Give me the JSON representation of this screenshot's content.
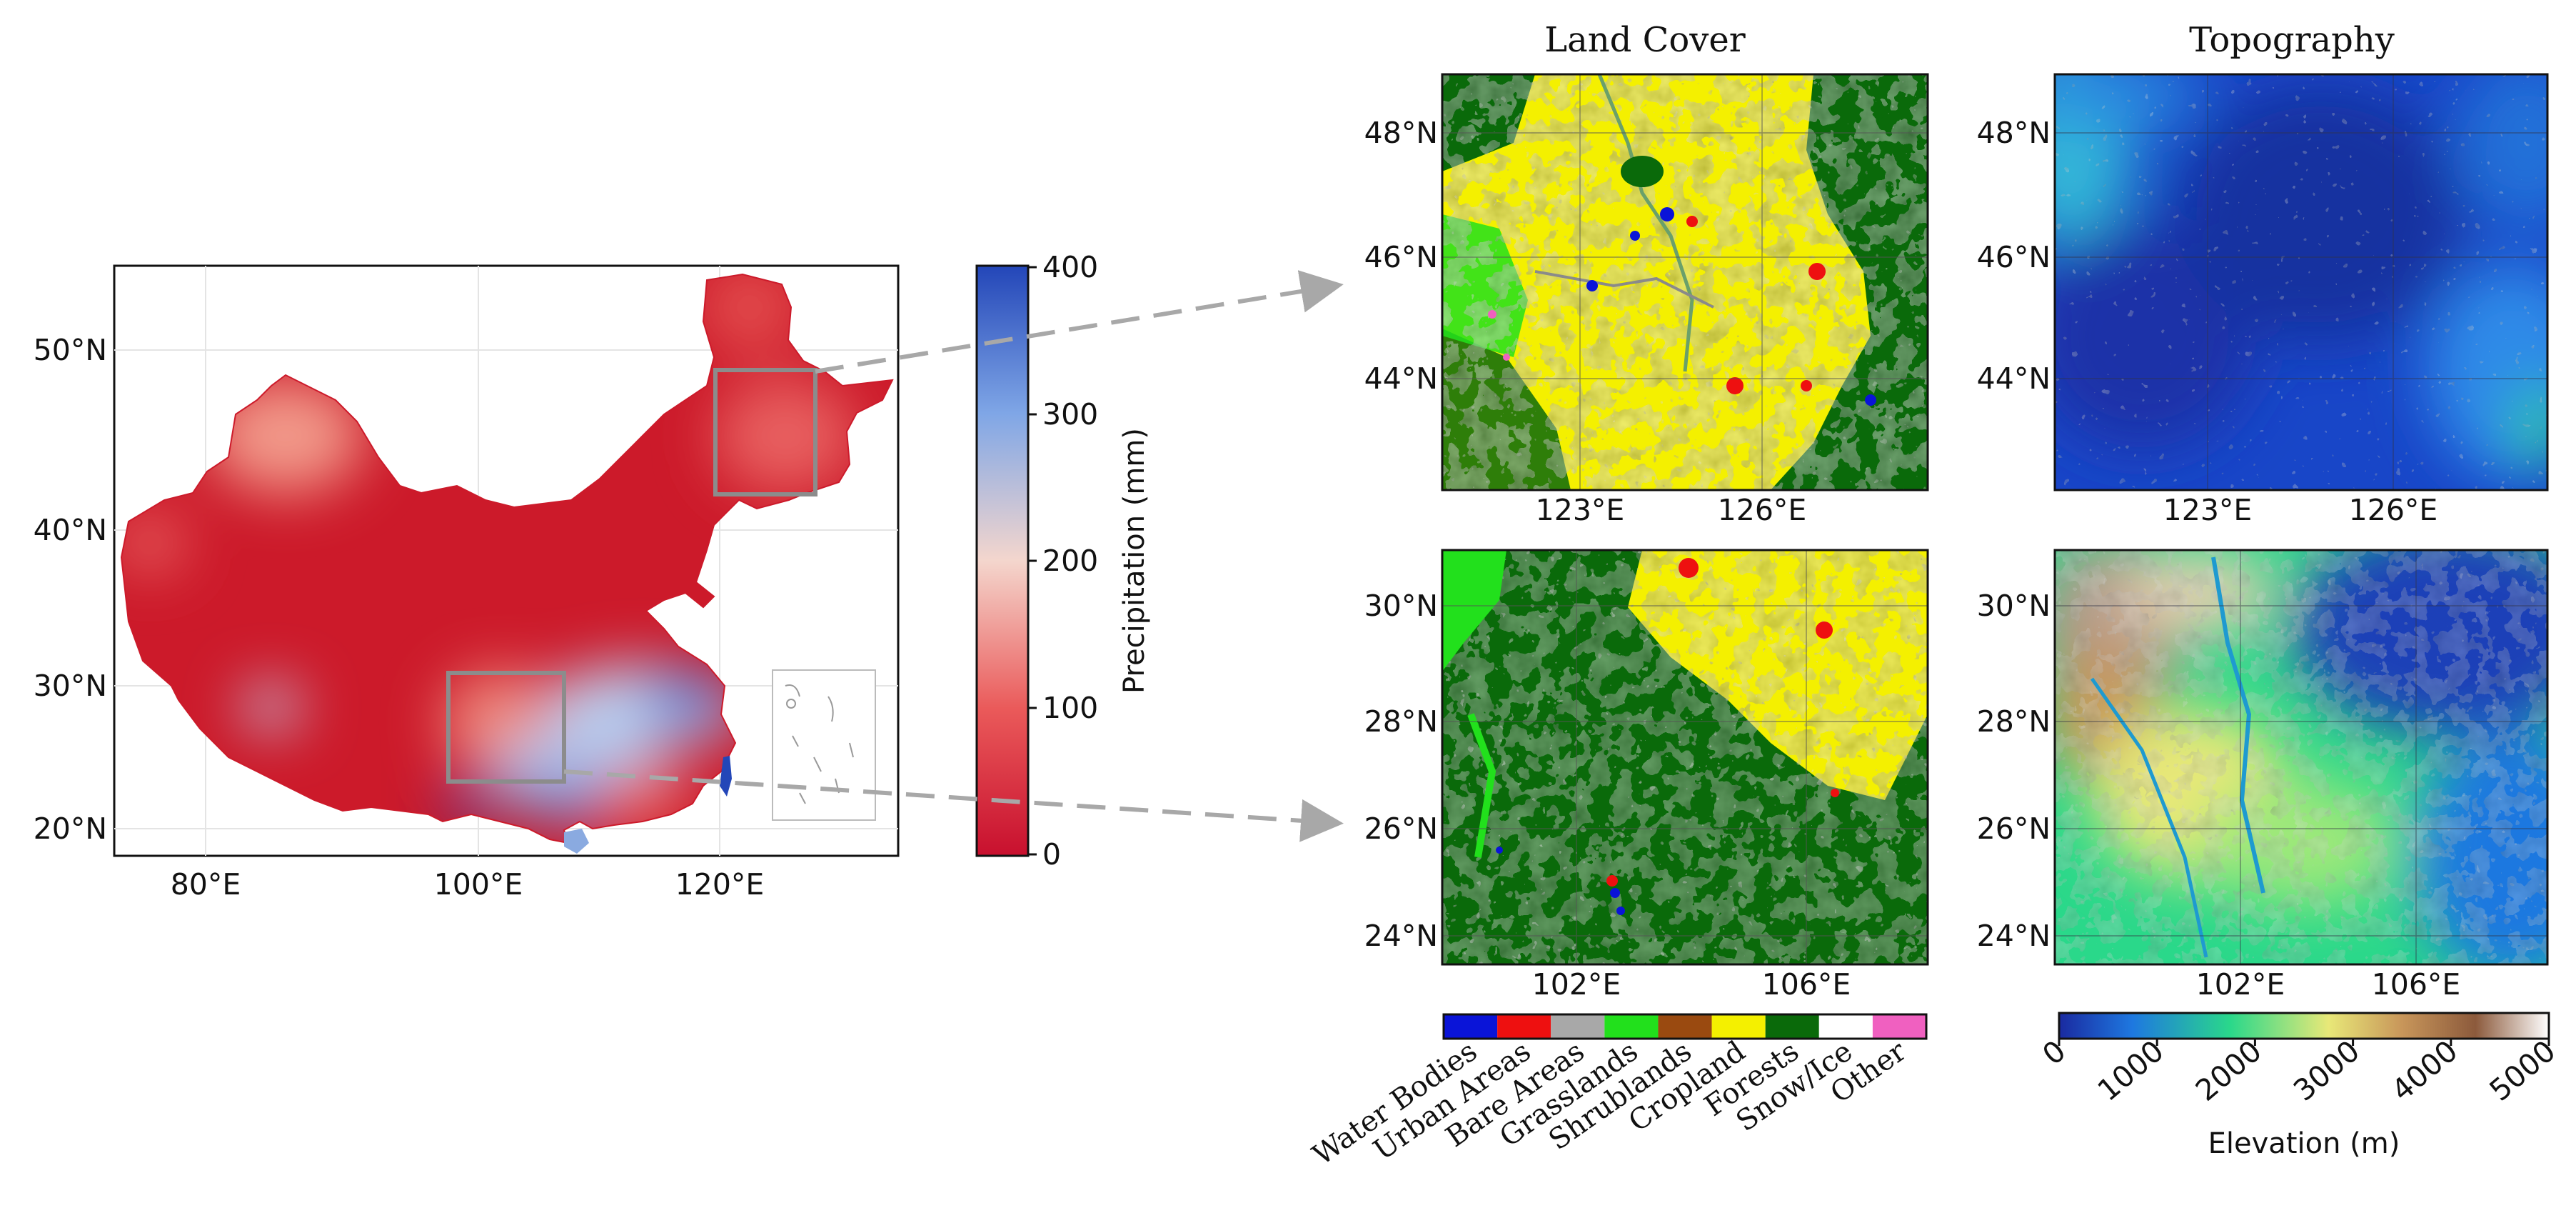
{
  "main_map": {
    "x_ticks": [
      "80°E",
      "100°E",
      "120°E"
    ],
    "y_ticks": [
      "50°N",
      "40°N",
      "30°N",
      "20°N"
    ],
    "colorbar": {
      "label": "Precipitation (mm)",
      "ticks": [
        "400",
        "300",
        "200",
        "100",
        "0"
      ],
      "range": [
        0,
        400
      ],
      "colors": [
        "#c8102e",
        "#f4d6cd",
        "#2346b8"
      ]
    }
  },
  "columns": {
    "land_cover_title": "Land Cover",
    "topography_title": "Topography"
  },
  "panels": {
    "northeast": {
      "x_ticks": [
        "123°E",
        "126°E"
      ],
      "y_ticks": [
        "48°N",
        "46°N",
        "44°N"
      ]
    },
    "southwest": {
      "x_ticks": [
        "102°E",
        "106°E"
      ],
      "y_ticks": [
        "30°N",
        "28°N",
        "26°N",
        "24°N"
      ]
    }
  },
  "land_cover_legend": {
    "classes": [
      {
        "label": "Water Bodies",
        "color": "#0a14d8"
      },
      {
        "label": "Urban Areas",
        "color": "#ee1010"
      },
      {
        "label": "Bare Areas",
        "color": "#a8a8a8"
      },
      {
        "label": "Grasslands",
        "color": "#22e01c"
      },
      {
        "label": "Shrublands",
        "color": "#9a4a10"
      },
      {
        "label": "Cropland",
        "color": "#f4f000"
      },
      {
        "label": "Forests",
        "color": "#0a6a0a"
      },
      {
        "label": "Snow/Ice",
        "color": "#ffffff"
      },
      {
        "label": "Other",
        "color": "#f060c0"
      }
    ]
  },
  "elevation_legend": {
    "label": "Elevation (m)",
    "ticks": [
      "0",
      "1000",
      "2000",
      "3000",
      "4000",
      "5000"
    ],
    "range": [
      0,
      5000
    ],
    "colors": [
      "#1a2aa0",
      "#1e78e0",
      "#2ad88a",
      "#e8e878",
      "#c8965a",
      "#8c5a3c",
      "#ffffff"
    ]
  }
}
